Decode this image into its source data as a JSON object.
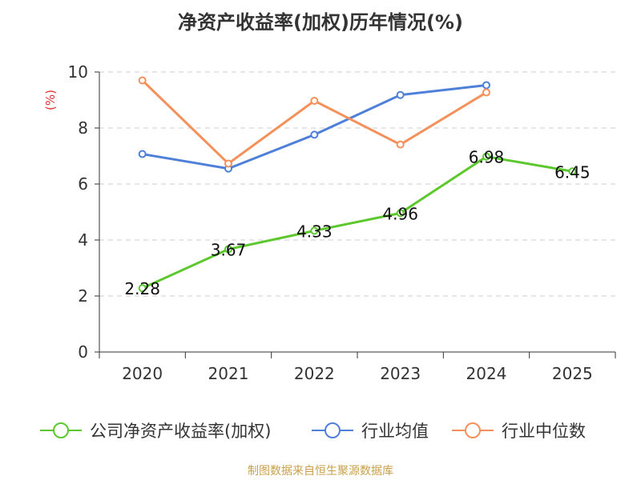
{
  "chart_data": {
    "type": "line",
    "title": "净资产收益率(加权)历年情况(%)",
    "ylabel": "(%)",
    "xlabel": "",
    "categories": [
      "2020",
      "2021",
      "2022",
      "2023",
      "2024",
      "2025"
    ],
    "ylim": [
      0,
      10
    ],
    "yticks": [
      "0",
      "2",
      "4",
      "6",
      "8",
      "10"
    ],
    "grid": true,
    "legend_position": "bottom",
    "series": [
      {
        "name": "公司净资产收益率(加权)",
        "color": "#5dc72e",
        "values": [
          2.28,
          3.67,
          4.33,
          4.96,
          6.98,
          6.45
        ],
        "labels": [
          "2.28",
          "3.67",
          "4.33",
          "4.96",
          "6.98",
          "6.45"
        ]
      },
      {
        "name": "行业均值",
        "color": "#4f80d9",
        "values": [
          7.07,
          6.55,
          7.76,
          9.18,
          9.53,
          null
        ]
      },
      {
        "name": "行业中位数",
        "color": "#f5905a",
        "values": [
          9.7,
          6.73,
          8.97,
          7.41,
          9.27,
          null
        ]
      }
    ],
    "source": "制图数据来自恒生聚源数据库"
  }
}
